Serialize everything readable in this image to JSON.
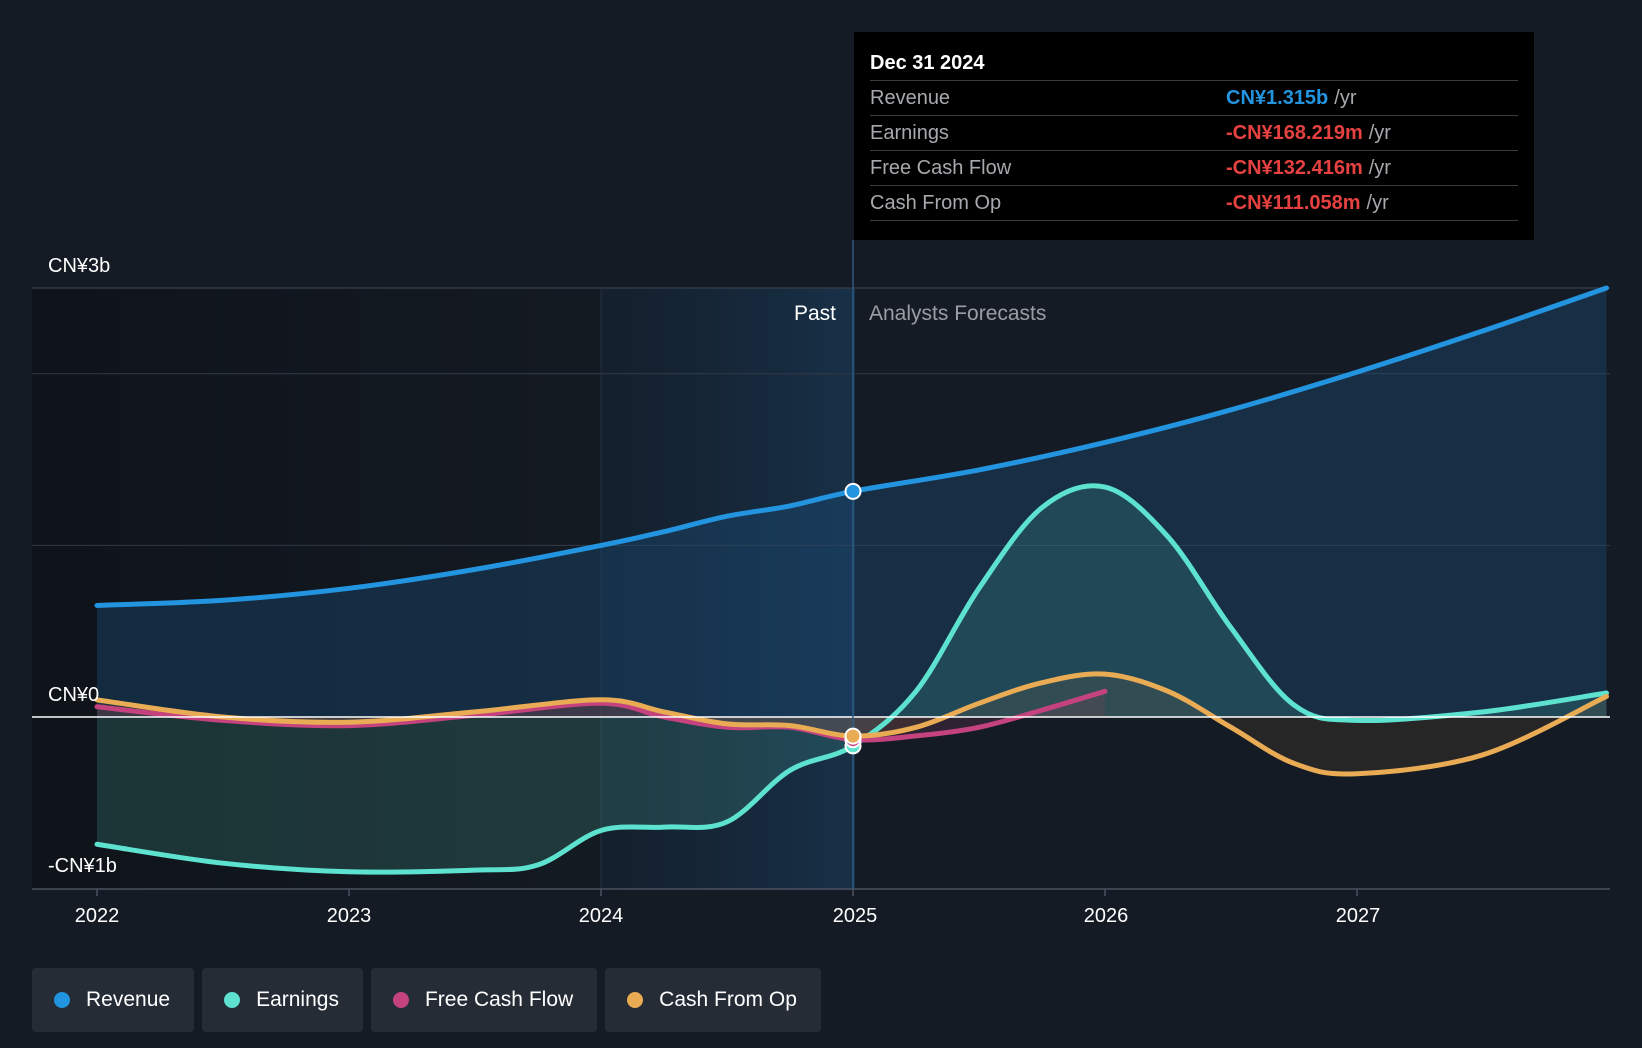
{
  "chart_data": {
    "type": "area",
    "x_ticks": [
      "2022",
      "2023",
      "2024",
      "2025",
      "2026",
      "2027"
    ],
    "y_axis_labels": {
      "top": "CN¥3b",
      "zero": "CN¥0",
      "bottom": "-CN¥1b"
    },
    "ylim": [
      -1.0,
      2.5
    ],
    "xlim": [
      2021.75,
      2027.99
    ],
    "past_label": "Past",
    "forecast_label": "Analysts Forecasts",
    "divider_x": 2025.0,
    "highlight_start_x": 2024.0,
    "series": [
      {
        "name": "Revenue",
        "color": "#2394df",
        "points": [
          [
            2022.0,
            0.65
          ],
          [
            2022.5,
            0.68
          ],
          [
            2023.0,
            0.75
          ],
          [
            2023.5,
            0.86
          ],
          [
            2024.0,
            1.0
          ],
          [
            2024.25,
            1.08
          ],
          [
            2024.5,
            1.17
          ],
          [
            2024.75,
            1.23
          ],
          [
            2025.0,
            1.315
          ],
          [
            2025.5,
            1.44
          ],
          [
            2026.0,
            1.6
          ],
          [
            2026.5,
            1.79
          ],
          [
            2027.0,
            2.01
          ],
          [
            2027.5,
            2.25
          ],
          [
            2027.99,
            2.5
          ]
        ]
      },
      {
        "name": "Earnings",
        "color": "#5de2cf",
        "points": [
          [
            2022.0,
            -0.74
          ],
          [
            2022.5,
            -0.85
          ],
          [
            2023.0,
            -0.9
          ],
          [
            2023.5,
            -0.89
          ],
          [
            2023.75,
            -0.86
          ],
          [
            2024.0,
            -0.66
          ],
          [
            2024.25,
            -0.64
          ],
          [
            2024.5,
            -0.61
          ],
          [
            2024.75,
            -0.31
          ],
          [
            2025.0,
            -0.168
          ],
          [
            2025.25,
            0.15
          ],
          [
            2025.5,
            0.75
          ],
          [
            2025.75,
            1.22
          ],
          [
            2026.0,
            1.34
          ],
          [
            2026.25,
            1.05
          ],
          [
            2026.5,
            0.52
          ],
          [
            2026.75,
            0.07
          ],
          [
            2027.0,
            -0.02
          ],
          [
            2027.5,
            0.03
          ],
          [
            2027.99,
            0.14
          ]
        ]
      },
      {
        "name": "Free Cash Flow",
        "color": "#c4427e",
        "points": [
          [
            2022.0,
            0.06
          ],
          [
            2022.5,
            -0.02
          ],
          [
            2023.0,
            -0.05
          ],
          [
            2023.5,
            0.01
          ],
          [
            2024.0,
            0.08
          ],
          [
            2024.25,
            0.0
          ],
          [
            2024.5,
            -0.06
          ],
          [
            2024.75,
            -0.06
          ],
          [
            2025.0,
            -0.132
          ],
          [
            2025.25,
            -0.11
          ],
          [
            2025.5,
            -0.06
          ],
          [
            2025.75,
            0.04
          ],
          [
            2026.0,
            0.15
          ]
        ]
      },
      {
        "name": "Cash From Op",
        "color": "#e9ab54",
        "points": [
          [
            2022.0,
            0.1
          ],
          [
            2022.5,
            0.0
          ],
          [
            2023.0,
            -0.03
          ],
          [
            2023.5,
            0.03
          ],
          [
            2024.0,
            0.1
          ],
          [
            2024.25,
            0.03
          ],
          [
            2024.5,
            -0.04
          ],
          [
            2024.75,
            -0.05
          ],
          [
            2025.0,
            -0.111
          ],
          [
            2025.25,
            -0.06
          ],
          [
            2025.5,
            0.08
          ],
          [
            2025.75,
            0.2
          ],
          [
            2026.0,
            0.25
          ],
          [
            2026.25,
            0.15
          ],
          [
            2026.5,
            -0.06
          ],
          [
            2026.75,
            -0.27
          ],
          [
            2027.0,
            -0.33
          ],
          [
            2027.5,
            -0.22
          ],
          [
            2027.99,
            0.12
          ]
        ]
      }
    ],
    "highlight_points": [
      {
        "series": "Revenue",
        "x": 2025.0,
        "y": 1.315
      },
      {
        "series": "Earnings",
        "x": 2025.0,
        "y": -0.168
      },
      {
        "series": "Free Cash Flow",
        "x": 2025.0,
        "y": -0.132
      },
      {
        "series": "Cash From Op",
        "x": 2025.0,
        "y": -0.111
      }
    ]
  },
  "tooltip": {
    "date": "Dec 31 2024",
    "unit": "/yr",
    "rows": [
      {
        "label": "Revenue",
        "value": "CN¥1.315b",
        "color": "#2394df"
      },
      {
        "label": "Earnings",
        "value": "-CN¥168.219m",
        "color": "#e64141"
      },
      {
        "label": "Free Cash Flow",
        "value": "-CN¥132.416m",
        "color": "#e64141"
      },
      {
        "label": "Cash From Op",
        "value": "-CN¥111.058m",
        "color": "#e64141"
      }
    ]
  },
  "legend": [
    {
      "label": "Revenue",
      "color": "#2394df"
    },
    {
      "label": "Earnings",
      "color": "#5de2cf"
    },
    {
      "label": "Free Cash Flow",
      "color": "#c4427e"
    },
    {
      "label": "Cash From Op",
      "color": "#e9ab54"
    }
  ]
}
